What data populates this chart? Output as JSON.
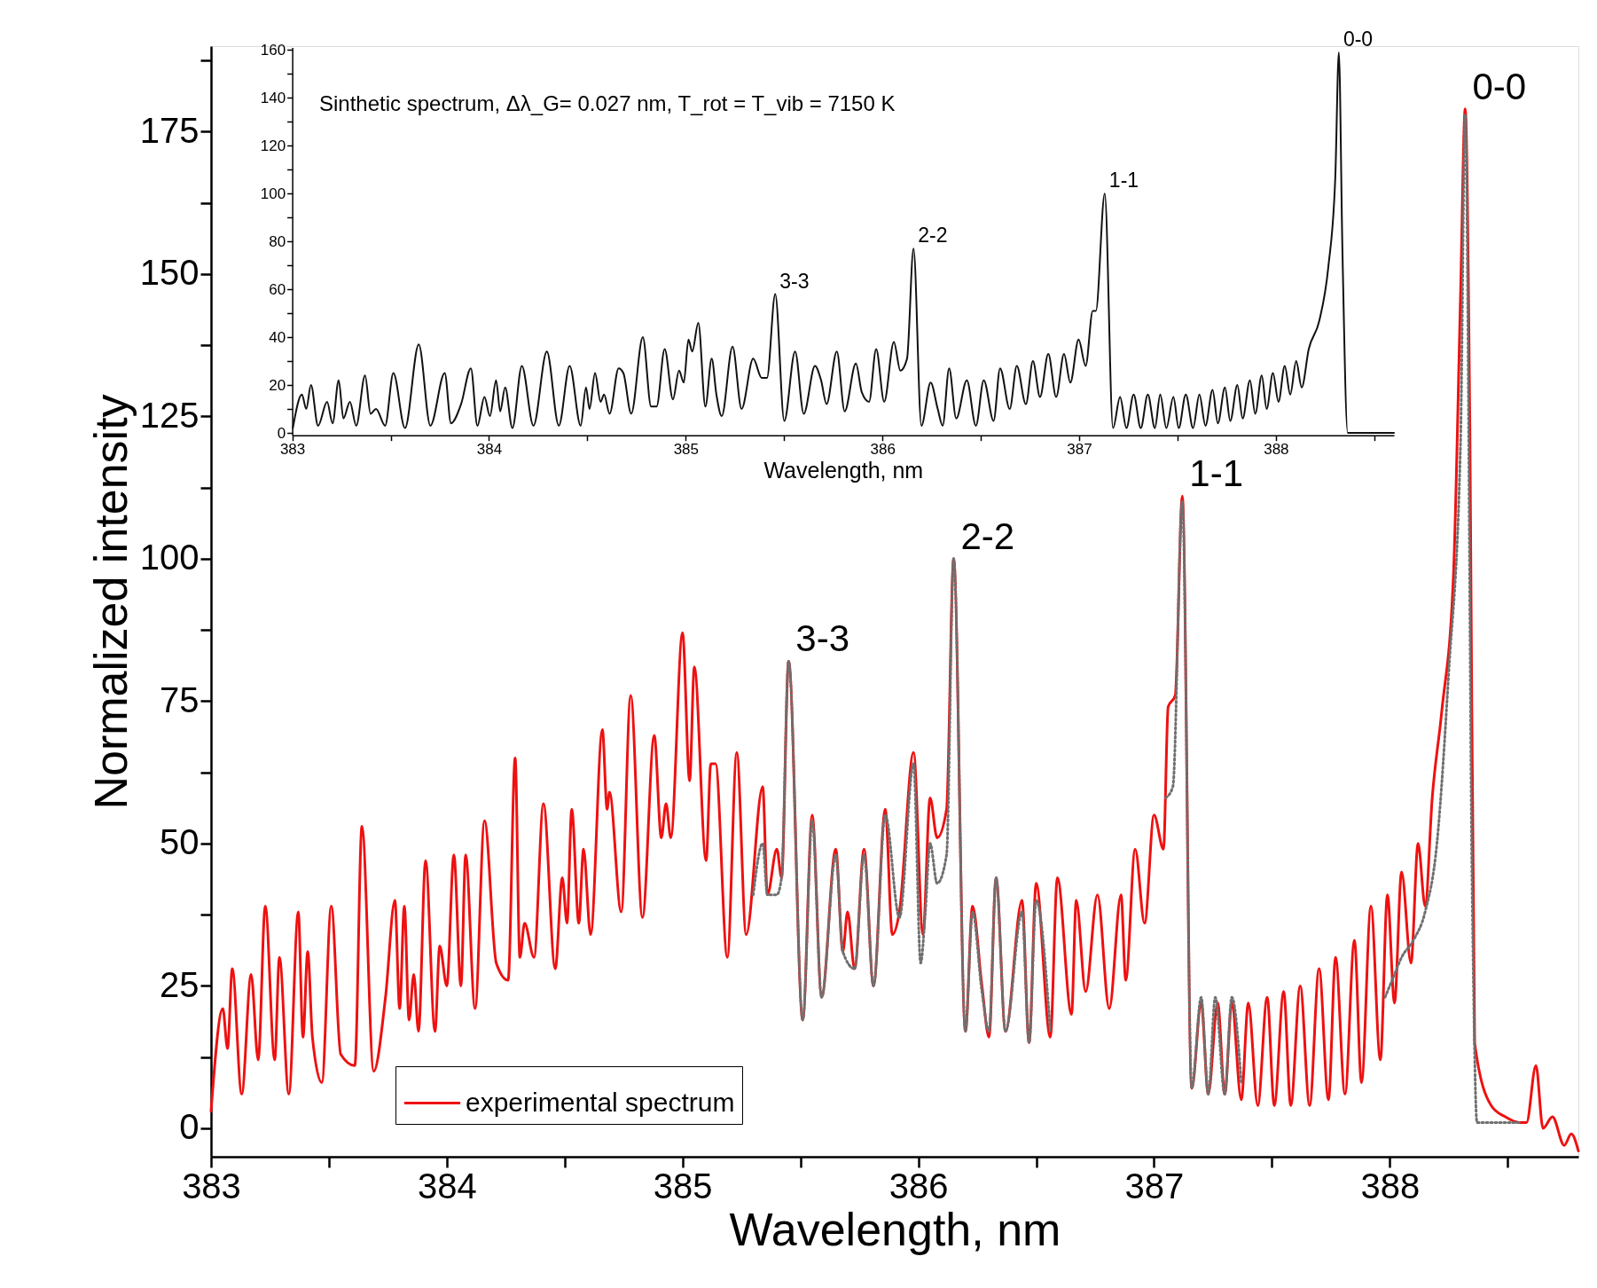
{
  "chart_data": [
    {
      "type": "line",
      "xlabel": "Wavelength, nm",
      "ylabel": "Normalized intensity",
      "xlim": [
        383,
        388.8
      ],
      "ylim": [
        -5,
        190
      ],
      "xticks": [
        383,
        {
          "value": 383.5,
          "label": null
        },
        384,
        {
          "value": 384.5,
          "label": null
        },
        385,
        {
          "value": 385.5,
          "label": null
        },
        386,
        {
          "value": 386.5,
          "label": null
        },
        387,
        {
          "value": 387.5,
          "label": null
        },
        388,
        {
          "value": 388.5,
          "label": null
        }
      ],
      "yticks": [
        0,
        {
          "value": 12.5,
          "label": null
        },
        25,
        {
          "value": 37.5,
          "label": null
        },
        50,
        {
          "value": 62.5,
          "label": null
        },
        75,
        {
          "value": 87.5,
          "label": null
        },
        100,
        {
          "value": 112.5,
          "label": null
        },
        125,
        {
          "value": 137.5,
          "label": null
        },
        150,
        {
          "value": 162.5,
          "label": null
        },
        175,
        {
          "value": 187.5,
          "label": null
        }
      ],
      "grid": false,
      "legend": "bottom left",
      "series": [
        {
          "name": "experimental spectrum",
          "color": "#ee1111",
          "line_style": "solid",
          "x": [
            383.0,
            383.05,
            383.07,
            383.09,
            383.13,
            383.17,
            383.2,
            383.23,
            383.27,
            383.29,
            383.33,
            383.37,
            383.39,
            383.41,
            383.43,
            383.47,
            383.51,
            383.55,
            383.61,
            383.64,
            383.69,
            383.74,
            383.78,
            383.8,
            383.82,
            383.84,
            383.86,
            383.88,
            383.91,
            383.95,
            383.97,
            384.0,
            384.03,
            384.06,
            384.08,
            384.12,
            384.16,
            384.21,
            384.26,
            384.29,
            384.31,
            384.33,
            384.37,
            384.41,
            384.46,
            384.49,
            384.51,
            384.53,
            384.56,
            384.58,
            384.61,
            384.66,
            384.68,
            384.69,
            384.74,
            384.78,
            384.83,
            384.88,
            384.91,
            384.93,
            384.95,
            385.0,
            385.03,
            385.05,
            385.1,
            385.12,
            385.14,
            385.19,
            385.23,
            385.27,
            385.34,
            385.36,
            385.4,
            385.42,
            385.45,
            385.51,
            385.55,
            385.59,
            385.65,
            385.68,
            385.7,
            385.73,
            385.77,
            385.81,
            385.86,
            385.89,
            385.92,
            385.98,
            386.02,
            386.05,
            386.08,
            386.12,
            386.15,
            386.2,
            386.23,
            386.27,
            386.3,
            386.33,
            386.37,
            386.44,
            386.47,
            386.5,
            386.56,
            386.59,
            386.65,
            386.67,
            386.71,
            386.76,
            386.81,
            386.86,
            386.88,
            386.92,
            386.96,
            387.0,
            387.04,
            387.06,
            387.09,
            387.12,
            387.16,
            387.2,
            387.23,
            387.27,
            387.3,
            387.33,
            387.37,
            387.4,
            387.44,
            387.48,
            387.51,
            387.55,
            387.58,
            387.62,
            387.66,
            387.7,
            387.74,
            387.77,
            387.81,
            387.85,
            387.88,
            387.92,
            387.96,
            387.99,
            388.02,
            388.05,
            388.09,
            388.12,
            388.15,
            388.18,
            388.22,
            388.27,
            388.3,
            388.32,
            388.34,
            388.36,
            388.43,
            388.49,
            388.55,
            388.58,
            388.62,
            388.65,
            388.69,
            388.74,
            388.77,
            388.8
          ],
          "values": [
            3,
            21,
            14,
            28,
            6,
            27,
            12,
            39,
            12,
            30,
            6,
            38,
            16,
            31,
            16,
            8,
            39,
            13,
            11,
            53,
            10,
            23,
            40,
            21,
            39,
            19,
            27,
            17,
            47,
            17,
            32,
            25,
            48,
            25,
            48,
            21,
            54,
            29,
            26,
            65,
            30,
            36,
            30,
            57,
            28,
            44,
            36,
            56,
            36,
            49,
            34,
            70,
            56,
            59,
            38,
            76,
            37,
            69,
            51,
            57,
            51,
            87,
            61,
            81,
            47,
            64,
            64,
            30,
            66,
            34,
            60,
            41,
            49,
            44,
            82,
            19,
            55,
            23,
            49,
            31,
            38,
            28,
            49,
            25,
            56,
            34,
            38,
            66,
            34,
            58,
            51,
            56,
            100,
            17,
            39,
            25,
            16,
            44,
            17,
            40,
            15,
            43,
            16,
            44,
            20,
            40,
            24,
            41,
            21,
            41,
            26,
            49,
            36,
            55,
            49,
            74,
            76,
            111,
            7,
            22,
            6,
            22,
            6,
            22,
            5,
            22,
            4,
            23,
            4,
            24,
            4,
            25,
            4,
            28,
            5,
            30,
            6,
            33,
            8,
            39,
            12,
            41,
            22,
            45,
            29,
            50,
            39,
            58,
            73,
            97,
            146,
            179,
            122,
            15,
            4,
            2,
            1,
            1,
            11,
            0,
            2,
            -3,
            -1,
            -4
          ]
        },
        {
          "color": "#707070",
          "line_style": "dotted",
          "x": [
            385.3,
            385.34,
            385.36,
            385.4,
            385.42,
            385.45,
            385.51,
            385.55,
            385.59,
            385.65,
            385.68,
            385.73,
            385.77,
            385.81,
            385.86,
            385.92,
            385.98,
            386.01,
            386.03,
            386.05,
            386.08,
            386.12,
            386.15,
            386.2,
            386.23,
            386.27,
            386.3,
            386.33,
            386.37,
            386.44,
            386.47,
            386.5,
            386.56,
            386.8,
            387.05,
            387.08,
            387.12,
            387.16,
            387.2,
            387.23,
            387.26,
            387.3,
            387.33,
            387.37,
            387.6,
            387.98,
            388.02,
            388.05,
            388.1,
            388.15,
            388.2,
            388.25,
            388.3,
            388.32,
            388.35,
            388.37,
            388.55
          ],
          "values": [
            41,
            50,
            41,
            41,
            44,
            82,
            19,
            54,
            23,
            48,
            31,
            28,
            48,
            25,
            55,
            37,
            64,
            29,
            38,
            50,
            43,
            48,
            100,
            17,
            38,
            24,
            17,
            44,
            17,
            38,
            15,
            40,
            17,
            null,
            58,
            60,
            110,
            7,
            23,
            6,
            23,
            6,
            23,
            8,
            null,
            23,
            27,
            30,
            33,
            38,
            50,
            80,
            120,
            178,
            40,
            1,
            1
          ]
        }
      ],
      "annotations": [
        {
          "text": "3-3",
          "x": 385.45,
          "y": 82
        },
        {
          "text": "2-2",
          "x": 386.15,
          "y": 100
        },
        {
          "text": "1-1",
          "x": 387.12,
          "y": 111
        },
        {
          "text": "0-0",
          "x": 388.32,
          "y": 179
        }
      ]
    },
    {
      "type": "line",
      "xlabel": "Wavelength, nm",
      "xlim": [
        383,
        388.6
      ],
      "ylim": [
        -1,
        161
      ],
      "xticks": [
        383,
        {
          "value": 383.5,
          "label": null
        },
        384,
        {
          "value": 384.5,
          "label": null
        },
        385,
        {
          "value": 385.5,
          "label": null
        },
        386,
        {
          "value": 386.5,
          "label": null
        },
        387,
        {
          "value": 387.5,
          "label": null
        },
        388,
        {
          "value": 388.5,
          "label": null
        }
      ],
      "yticks": [
        0,
        {
          "value": 10,
          "label": null
        },
        20,
        {
          "value": 30,
          "label": null
        },
        40,
        {
          "value": 50,
          "label": null
        },
        60,
        {
          "value": 70,
          "label": null
        },
        80,
        {
          "value": 90,
          "label": null
        },
        100,
        {
          "value": 110,
          "label": null
        },
        120,
        {
          "value": 130,
          "label": null
        },
        140,
        {
          "value": 150,
          "label": null
        },
        160
      ],
      "grid": false,
      "x": [
        383.003,
        383.049,
        383.071,
        383.095,
        383.131,
        383.177,
        383.205,
        383.236,
        383.26,
        383.293,
        383.325,
        383.37,
        383.398,
        383.426,
        383.472,
        383.514,
        383.573,
        383.643,
        383.702,
        383.775,
        383.807,
        383.858,
        383.908,
        383.941,
        383.977,
        384.005,
        384.036,
        384.057,
        384.082,
        384.119,
        384.167,
        384.226,
        384.294,
        384.355,
        384.41,
        384.466,
        384.493,
        384.511,
        384.539,
        384.567,
        384.585,
        384.613,
        384.659,
        384.683,
        384.723,
        384.782,
        384.824,
        384.852,
        384.893,
        384.935,
        384.966,
        384.99,
        385.014,
        385.033,
        385.064,
        385.1,
        385.132,
        385.156,
        385.183,
        385.238,
        385.284,
        385.343,
        385.386,
        385.413,
        385.455,
        385.501,
        385.556,
        385.6,
        385.657,
        385.688,
        385.716,
        385.768,
        385.808,
        385.865,
        385.895,
        385.932,
        385.968,
        386.009,
        386.058,
        386.091,
        386.125,
        386.158,
        386.198,
        386.245,
        386.281,
        386.306,
        386.339,
        386.375,
        386.429,
        386.475,
        386.515,
        386.565,
        386.598,
        386.647,
        386.683,
        386.729,
        386.765,
        386.801,
        386.843,
        386.883,
        386.923,
        386.955,
        386.997,
        387.033,
        387.069,
        387.085,
        387.13,
        387.172,
        387.208,
        387.24,
        387.277,
        387.313,
        387.349,
        387.385,
        387.412,
        387.443,
        387.479,
        387.506,
        387.542,
        387.579,
        387.611,
        387.642,
        387.678,
        387.705,
        387.741,
        387.768,
        387.804,
        387.831,
        387.868,
        387.895,
        387.928,
        387.953,
        387.985,
        388.013,
        388.045,
        388.073,
        388.103,
        388.131,
        388.167,
        388.221,
        388.266,
        388.302,
        388.32,
        388.338,
        388.365,
        388.42,
        388.6
      ],
      "series": [
        {
          "color": "#111111",
          "line_style": "solid",
          "values": [
            2,
            16,
            10,
            20,
            3,
            13,
            4,
            22,
            6,
            13,
            3,
            24,
            8,
            10,
            3,
            25,
            2,
            37,
            3,
            25,
            4,
            12,
            27,
            3,
            15,
            7,
            22,
            9,
            19,
            2,
            28,
            3,
            34,
            3,
            28,
            3,
            19,
            10,
            25,
            13,
            16,
            8,
            27,
            25,
            8,
            40,
            11,
            11,
            35,
            14,
            26,
            21,
            39,
            34,
            46,
            11,
            31,
            16,
            7,
            36,
            10,
            31,
            23,
            23,
            58,
            5,
            34,
            8,
            28,
            22,
            12,
            34,
            9,
            29,
            17,
            13,
            35,
            13,
            38,
            26,
            31,
            77,
            3,
            21,
            10,
            3,
            27,
            6,
            22,
            3,
            22,
            5,
            27,
            10,
            28,
            12,
            30,
            15,
            33,
            15,
            33,
            21,
            39,
            28,
            51,
            51,
            100,
            2,
            15,
            2,
            16,
            2,
            16,
            2,
            16,
            2,
            15,
            2,
            16,
            2,
            16,
            3,
            18,
            4,
            19,
            5,
            20,
            6,
            22,
            8,
            24,
            10,
            25,
            13,
            28,
            16,
            30,
            19,
            35,
            47,
            69,
            107,
            159,
            77,
            0,
            0,
            0
          ]
        }
      ],
      "annotations": [
        "Sinthetic spectrum, Δλ_G= 0.027 nm, T_rot = T_vib = 7150 K",
        {
          "text": "3-3",
          "x": 385.455,
          "y": 58
        },
        {
          "text": "2-2",
          "x": 386.158,
          "y": 77
        },
        {
          "text": "1-1",
          "x": 387.13,
          "y": 100
        },
        {
          "text": "0-0",
          "x": 388.32,
          "y": 159
        }
      ]
    }
  ]
}
